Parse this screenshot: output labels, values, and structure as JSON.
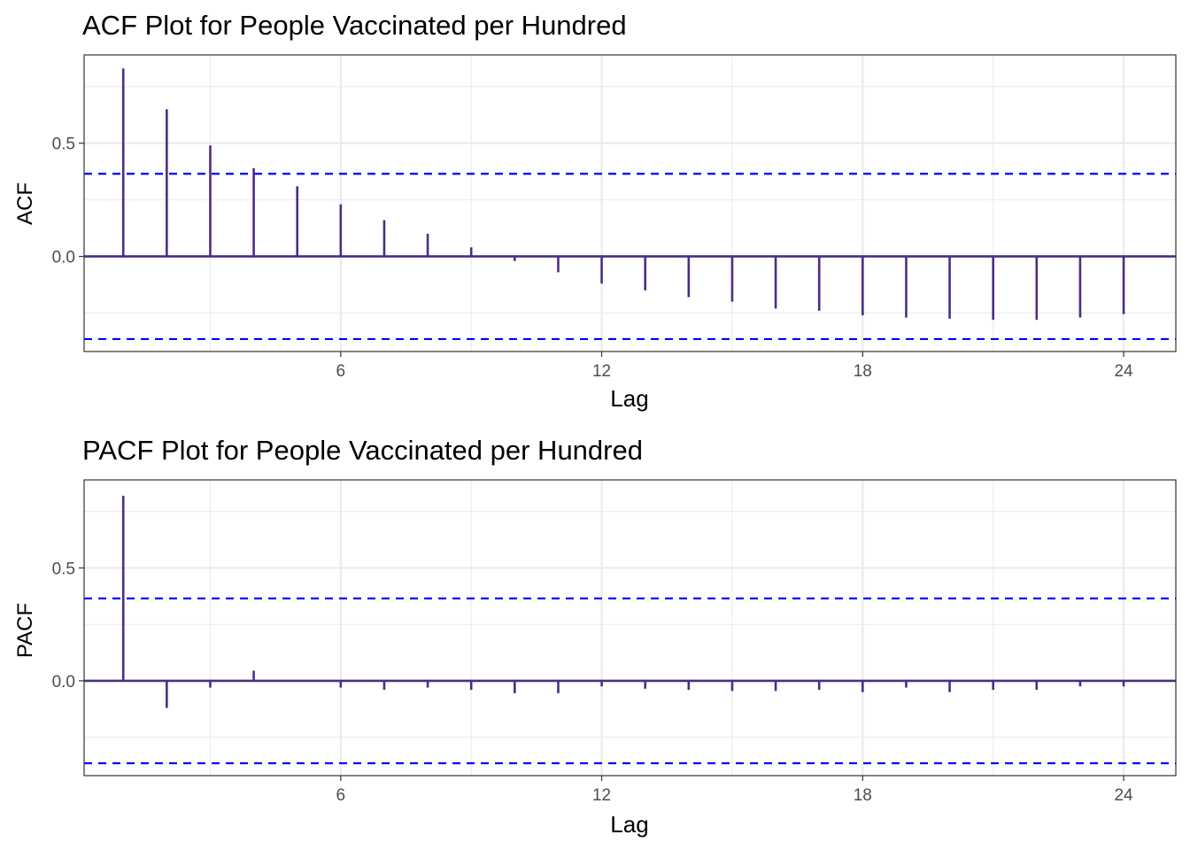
{
  "chart_data": [
    {
      "type": "bar",
      "title": "ACF Plot for People Vaccinated per Hundred",
      "xlabel": "Lag",
      "ylabel": "ACF",
      "x_ticks": [
        "6",
        "12",
        "18",
        "24"
      ],
      "y_ticks": [
        "0.0",
        "0.5"
      ],
      "xlim": [
        0.1,
        25.2
      ],
      "ylim": [
        -0.42,
        0.89
      ],
      "grid": true,
      "confidence_bounds": [
        0.365,
        -0.365
      ],
      "lags": [
        1,
        2,
        3,
        4,
        5,
        6,
        7,
        8,
        9,
        10,
        11,
        12,
        13,
        14,
        15,
        16,
        17,
        18,
        19,
        20,
        21,
        22,
        23,
        24
      ],
      "values": [
        0.83,
        0.65,
        0.49,
        0.39,
        0.31,
        0.23,
        0.16,
        0.1,
        0.04,
        -0.02,
        -0.07,
        -0.12,
        -0.15,
        -0.18,
        -0.2,
        -0.23,
        -0.24,
        -0.26,
        -0.27,
        -0.275,
        -0.28,
        -0.28,
        -0.27,
        -0.255
      ],
      "colors": {
        "spike": "#4b2d87",
        "confidence": "#0000ff"
      }
    },
    {
      "type": "bar",
      "title": "PACF Plot for People Vaccinated per Hundred",
      "xlabel": "Lag",
      "ylabel": "PACF",
      "x_ticks": [
        "6",
        "12",
        "18",
        "24"
      ],
      "y_ticks": [
        "0.0",
        "0.5"
      ],
      "xlim": [
        0.1,
        25.2
      ],
      "ylim": [
        -0.42,
        0.89
      ],
      "grid": true,
      "confidence_bounds": [
        0.365,
        -0.365
      ],
      "lags": [
        1,
        2,
        3,
        4,
        5,
        6,
        7,
        8,
        9,
        10,
        11,
        12,
        13,
        14,
        15,
        16,
        17,
        18,
        19,
        20,
        21,
        22,
        23,
        24
      ],
      "values": [
        0.82,
        -0.12,
        -0.03,
        0.045,
        0.0,
        -0.03,
        -0.04,
        -0.03,
        -0.04,
        -0.055,
        -0.055,
        -0.025,
        -0.035,
        -0.04,
        -0.045,
        -0.045,
        -0.04,
        -0.05,
        -0.03,
        -0.05,
        -0.04,
        -0.04,
        -0.025,
        -0.025
      ],
      "colors": {
        "spike": "#4b2d87",
        "confidence": "#0000ff"
      }
    }
  ]
}
